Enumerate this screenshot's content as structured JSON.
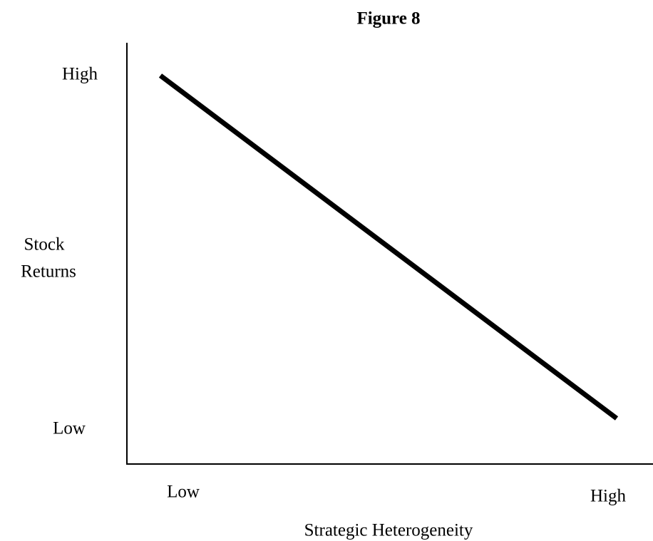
{
  "title": "Figure 8",
  "y_axis": {
    "label": [
      "Stock",
      "Returns"
    ],
    "ticks": [
      "High",
      "Low"
    ]
  },
  "x_axis": {
    "label": "Strategic Heterogeneity",
    "ticks": [
      "Low",
      "High"
    ]
  }
}
